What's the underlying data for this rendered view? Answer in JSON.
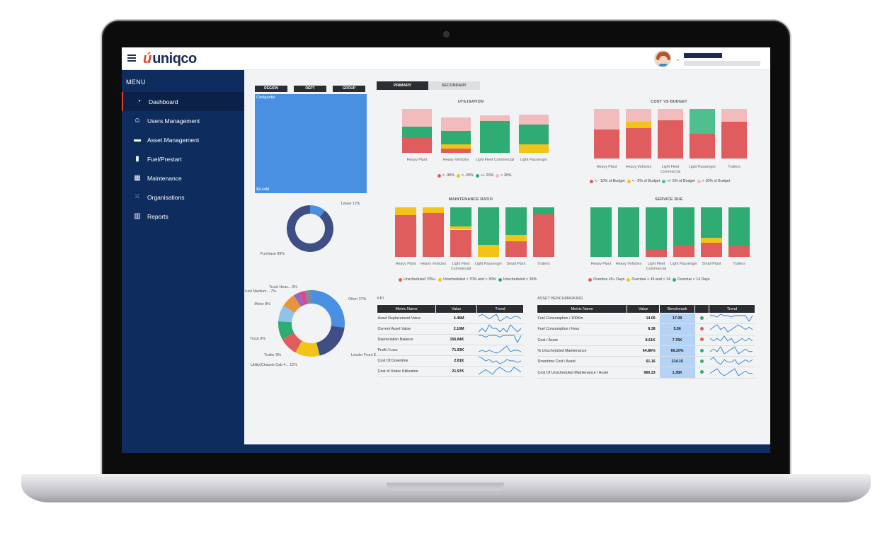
{
  "app": {
    "logo_mark": "ú",
    "logo_text": "uniqco"
  },
  "sidebar": {
    "menu_title": "MENU",
    "items": [
      {
        "label": "Dashboard",
        "icon": "dashboard-icon",
        "glyph": "◔",
        "active": true
      },
      {
        "label": "Users Management",
        "icon": "user-icon",
        "glyph": "☺"
      },
      {
        "label": "Asset Management",
        "icon": "car-icon",
        "glyph": "▬"
      },
      {
        "label": "Fuel/Prestart",
        "icon": "fuel-icon",
        "glyph": "▮"
      },
      {
        "label": "Maintenance",
        "icon": "building-icon",
        "glyph": "▦"
      },
      {
        "label": "Organisations",
        "icon": "grid-icon",
        "glyph": "⁙"
      },
      {
        "label": "Reports",
        "icon": "chart-icon",
        "glyph": "▥"
      }
    ]
  },
  "filters": {
    "region": "REGION",
    "dept": "DEPT",
    "group": "GROUP"
  },
  "treemap": {
    "label": "Coolgardie",
    "value": "$4.44M"
  },
  "tabs": {
    "primary": "PRIMARY",
    "secondary": "SECONDARY"
  },
  "colors": {
    "red": "#e05d5d",
    "yellow": "#f2c318",
    "green": "#2fac73",
    "pink": "#f3bcbc",
    "lightgreen": "#4fbf8e",
    "navy": "#0f2c5e",
    "blue": "#4a90e2"
  },
  "chart_data": [
    {
      "id": "utilisation",
      "type": "bar",
      "stacked": true,
      "title": "UTILISATION",
      "categories": [
        "Heavy Plant",
        "Heavy Vehicles",
        "Light Fleet Commercial",
        "Light Passenger"
      ],
      "series": [
        {
          "name": "< -30%",
          "color": "#e05d5d",
          "values": [
            34,
            10,
            0,
            0
          ]
        },
        {
          "name": "< -20%",
          "color": "#f2c318",
          "values": [
            0,
            10,
            0,
            20
          ]
        },
        {
          "name": "+/- 20%",
          "color": "#2fac73",
          "values": [
            25,
            30,
            72,
            45
          ]
        },
        {
          "name": "> 30%",
          "color": "#f3bcbc",
          "values": [
            41,
            30,
            13,
            22
          ]
        }
      ],
      "legend": [
        "< -30%",
        "< -20%",
        "+/- 20%",
        "> 30%"
      ],
      "ylim": [
        0,
        100
      ]
    },
    {
      "id": "cost_vs_budget",
      "type": "bar",
      "stacked": true,
      "title": "COST VS BUDGET",
      "categories": [
        "Heavy Plant",
        "Heavy Vehicles",
        "Light Fleet Commercial",
        "Light Passenger",
        "Trailers"
      ],
      "series": [
        {
          "name": "< - 10% of Budget",
          "color": "#e05d5d",
          "values": [
            59,
            62,
            77,
            50,
            75
          ]
        },
        {
          "name": "< - 5% of Budget",
          "color": "#f2c318",
          "values": [
            0,
            12,
            0,
            0,
            0
          ]
        },
        {
          "name": "+/- 5% of Budget",
          "color": "#4fbf8e",
          "values": [
            0,
            0,
            0,
            50,
            0
          ]
        },
        {
          "name": "> 10% of Budget",
          "color": "#f3bcbc",
          "values": [
            41,
            26,
            23,
            0,
            25
          ]
        }
      ],
      "legend": [
        "< - 10% of Budget",
        "< - 5% of Budget",
        "+/- 5% of Budget",
        "> 10% of Budget"
      ],
      "ylim": [
        0,
        100
      ]
    },
    {
      "id": "maintenance_ratio",
      "type": "bar",
      "stacked": true,
      "title": "MAINTENANCE RATIO",
      "categories": [
        "Heavy Plant",
        "Heavy Vehicles",
        "Light Fleet Commercial",
        "Light Passenger",
        "Small Plant",
        "Trailers"
      ],
      "series": [
        {
          "name": "Unscheduled 70%+",
          "color": "#e05d5d",
          "values": [
            85,
            88,
            55,
            0,
            32,
            86
          ]
        },
        {
          "name": "Unscheduled < 70% and > 30%",
          "color": "#f2c318",
          "values": [
            15,
            12,
            7,
            25,
            12,
            0
          ]
        },
        {
          "name": "Unscheduled < 30%",
          "color": "#2fac73",
          "values": [
            0,
            0,
            38,
            75,
            56,
            14
          ]
        }
      ],
      "legend": [
        "Unscheduled 70%+",
        "Unscheduled < 70% and > 30%",
        "Unscheduled < 30%"
      ],
      "ylim": [
        0,
        100
      ]
    },
    {
      "id": "service_due",
      "type": "bar",
      "stacked": true,
      "title": "SERVICE DUE",
      "categories": [
        "Heavy Plant",
        "Heavy Vehicles",
        "Light Fleet Commercial",
        "Light Passenger",
        "Small Plant",
        "Trailers"
      ],
      "series": [
        {
          "name": "Overdue 45+ Days",
          "color": "#e05d5d",
          "values": [
            0,
            0,
            14,
            25,
            28,
            22
          ]
        },
        {
          "name": "Overdue < 45 and > 14",
          "color": "#f2c318",
          "values": [
            0,
            0,
            0,
            0,
            10,
            0
          ]
        },
        {
          "name": "Overdue < 14 Days",
          "color": "#2fac73",
          "values": [
            100,
            100,
            86,
            75,
            62,
            78
          ]
        }
      ],
      "legend": [
        "Overdue 45+ Days",
        "Overdue < 45 and > 14",
        "Overdue < 14 Days"
      ],
      "ylim": [
        0,
        100
      ]
    },
    {
      "id": "lease_purchase",
      "type": "pie",
      "donut": true,
      "labels": [
        "Lease 11%",
        "Purchase 89%"
      ],
      "values": [
        11,
        89
      ],
      "colors": [
        "#4a90e2",
        "#3f4f86"
      ]
    },
    {
      "id": "asset_types",
      "type": "pie",
      "donut": true,
      "labels": [
        "Other 27%",
        "Leader Front E... 19%",
        "Utility(Chassis Cab 4... 12%",
        "Trailer 9%",
        "Truck 9%",
        "Motor 8%",
        "Truck Medium... 7%",
        "Truck Heav... 3%",
        "",
        ""
      ],
      "values": [
        27,
        19,
        12,
        9,
        9,
        8,
        7,
        3,
        3,
        3
      ],
      "colors": [
        "#4a90e2",
        "#3f4f86",
        "#f2c318",
        "#e05d5d",
        "#2fac73",
        "#8fc3ea",
        "#e8943a",
        "#9966bb",
        "#d84a8c",
        "#7a8ca0"
      ]
    }
  ],
  "kpi": {
    "title": "KPI",
    "headers": [
      "Metric Name",
      "Value",
      "Trend"
    ],
    "rows": [
      {
        "metric": "Asset Replacement Value",
        "value": "4.46M",
        "trend": [
          5,
          6,
          5,
          4,
          5,
          6,
          3,
          4,
          5,
          4,
          5,
          5,
          4
        ]
      },
      {
        "metric": "Current Asset Value",
        "value": "2.10M",
        "trend": [
          4,
          5,
          4,
          6,
          5,
          5,
          4,
          5,
          4,
          6,
          5,
          4,
          5
        ]
      },
      {
        "metric": "Depreciation Balance",
        "value": "156.84K",
        "trend": [
          5,
          5,
          4,
          5,
          5,
          5,
          4,
          5,
          5,
          5,
          5,
          1,
          5
        ]
      },
      {
        "metric": "Profit / Loss",
        "value": "71.93K",
        "trend": [
          4,
          5,
          4,
          5,
          4,
          3,
          4,
          6,
          8,
          4,
          5,
          5,
          4
        ]
      },
      {
        "metric": "Cost Of Downtime",
        "value": "2.81K",
        "trend": [
          7,
          6,
          4,
          5,
          3,
          4,
          2,
          3,
          5,
          4,
          4,
          3,
          4
        ]
      },
      {
        "metric": "Cost of Under Utilisation",
        "value": "21.97K",
        "trend": [
          3,
          4,
          5,
          4,
          3,
          5,
          6,
          5,
          4,
          4,
          6,
          5,
          4
        ]
      }
    ]
  },
  "benchmark": {
    "title": "ASSET BENCHMARKING",
    "headers": [
      "Metric Name",
      "Value",
      "Benchmark",
      "",
      "Trend"
    ],
    "rows": [
      {
        "metric": "Fuel Consumption / 100Km",
        "value": "14.05",
        "benchmark": "17.09",
        "status": "#2fac73",
        "trend": [
          5,
          5,
          4,
          6,
          5,
          5,
          4,
          5,
          5,
          5,
          5,
          1,
          5
        ]
      },
      {
        "metric": "Fuel Consumption / Hour",
        "value": "8.38",
        "benchmark": "5.56",
        "status": "#e05d5d",
        "trend": [
          4,
          5,
          6,
          4,
          5,
          3,
          4,
          5,
          6,
          5,
          4,
          5,
          4
        ]
      },
      {
        "metric": "Cost / Asset",
        "value": "8.61K",
        "benchmark": "7.76K",
        "status": "#e05d5d",
        "trend": [
          5,
          4,
          5,
          4,
          6,
          4,
          5,
          3,
          4,
          5,
          4,
          5,
          4
        ]
      },
      {
        "metric": "% Unscheduled Maintenance",
        "value": "64.86%",
        "benchmark": "66.20%",
        "status": "#2fac73",
        "trend": [
          4,
          5,
          4,
          6,
          3,
          4,
          5,
          6,
          3,
          4,
          5,
          4,
          4
        ]
      },
      {
        "metric": "Downtime Cost / Asset",
        "value": "61.16",
        "benchmark": "214.15",
        "status": "#2fac73",
        "trend": [
          5,
          6,
          4,
          3,
          5,
          4,
          4,
          5,
          3,
          4,
          5,
          4,
          5
        ]
      },
      {
        "metric": "Cost Of Unscheduled Maintenance / Asset",
        "value": "960.23",
        "benchmark": "1.35K",
        "status": "#2fac73",
        "trend": [
          4,
          5,
          6,
          4,
          3,
          4,
          5,
          6,
          3,
          4,
          5,
          4,
          4
        ]
      }
    ]
  }
}
